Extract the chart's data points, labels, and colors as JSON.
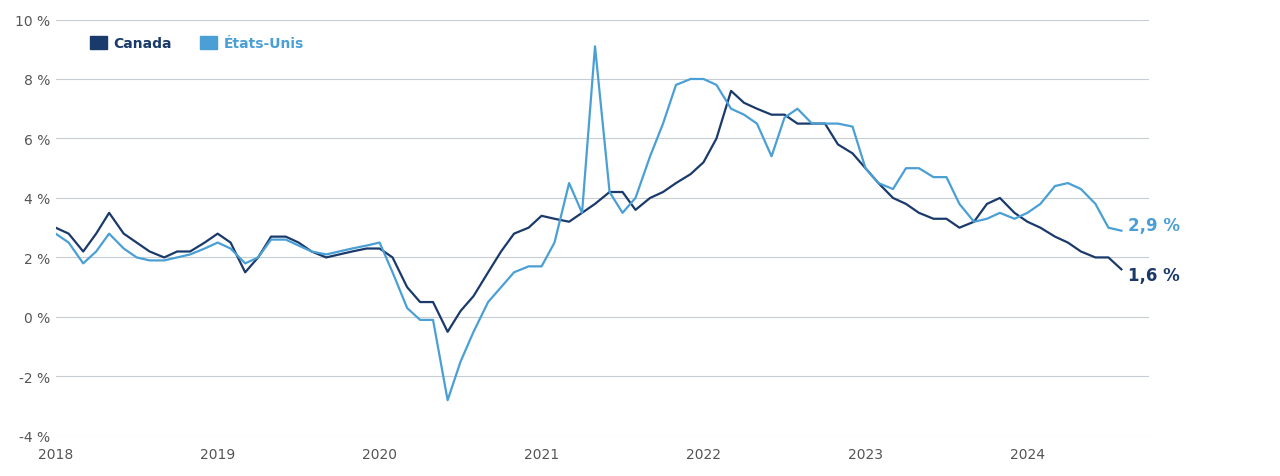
{
  "background_color": "#ffffff",
  "line_color_canada": "#1a3a6b",
  "line_color_us": "#4a9fd4",
  "grid_color": "#c8cdd4",
  "text_color": "#555555",
  "legend_canada": "Canada",
  "legend_us": "États-Unis",
  "end_label_canada": "1,6 %",
  "end_label_us": "2,9 %",
  "ylim": [
    -4,
    10
  ],
  "yticks": [
    -4,
    -2,
    0,
    2,
    4,
    6,
    8,
    10
  ],
  "canada_x": [
    2018.0,
    2018.08,
    2018.17,
    2018.25,
    2018.33,
    2018.42,
    2018.5,
    2018.58,
    2018.67,
    2018.75,
    2018.83,
    2018.92,
    2019.0,
    2019.08,
    2019.17,
    2019.25,
    2019.33,
    2019.42,
    2019.5,
    2019.58,
    2019.67,
    2019.75,
    2019.83,
    2019.92,
    2020.0,
    2020.08,
    2020.17,
    2020.25,
    2020.33,
    2020.42,
    2020.5,
    2020.58,
    2020.67,
    2020.75,
    2020.83,
    2020.92,
    2021.0,
    2021.08,
    2021.17,
    2021.25,
    2021.33,
    2021.42,
    2021.5,
    2021.58,
    2021.67,
    2021.75,
    2021.83,
    2021.92,
    2022.0,
    2022.08,
    2022.17,
    2022.25,
    2022.33,
    2022.42,
    2022.5,
    2022.58,
    2022.67,
    2022.75,
    2022.83,
    2022.92,
    2023.0,
    2023.08,
    2023.17,
    2023.25,
    2023.33,
    2023.42,
    2023.5,
    2023.58,
    2023.67,
    2023.75,
    2023.83,
    2023.92,
    2024.0,
    2024.08,
    2024.17,
    2024.25,
    2024.33,
    2024.42,
    2024.5,
    2024.58
  ],
  "canada_y": [
    3.0,
    2.8,
    2.2,
    2.8,
    3.5,
    2.8,
    2.5,
    2.2,
    2.0,
    2.2,
    2.2,
    2.5,
    2.8,
    2.5,
    1.5,
    2.0,
    2.7,
    2.7,
    2.5,
    2.2,
    2.0,
    2.1,
    2.2,
    2.3,
    2.3,
    2.0,
    1.0,
    0.5,
    0.5,
    -0.5,
    0.2,
    0.7,
    1.5,
    2.2,
    2.8,
    3.0,
    3.4,
    3.3,
    3.2,
    3.5,
    3.8,
    4.2,
    4.2,
    3.6,
    4.0,
    4.2,
    4.5,
    4.8,
    5.2,
    6.0,
    7.6,
    7.2,
    7.0,
    6.8,
    6.8,
    6.5,
    6.5,
    6.5,
    5.8,
    5.5,
    5.0,
    4.5,
    4.0,
    3.8,
    3.5,
    3.3,
    3.3,
    3.0,
    3.2,
    3.8,
    4.0,
    3.5,
    3.2,
    3.0,
    2.7,
    2.5,
    2.2,
    2.0,
    2.0,
    1.6
  ],
  "us_x": [
    2018.0,
    2018.08,
    2018.17,
    2018.25,
    2018.33,
    2018.42,
    2018.5,
    2018.58,
    2018.67,
    2018.75,
    2018.83,
    2018.92,
    2019.0,
    2019.08,
    2019.17,
    2019.25,
    2019.33,
    2019.42,
    2019.5,
    2019.58,
    2019.67,
    2019.75,
    2019.83,
    2019.92,
    2020.0,
    2020.08,
    2020.17,
    2020.25,
    2020.33,
    2020.42,
    2020.5,
    2020.58,
    2020.67,
    2020.75,
    2020.83,
    2020.92,
    2021.0,
    2021.08,
    2021.17,
    2021.25,
    2021.33,
    2021.42,
    2021.5,
    2021.58,
    2021.67,
    2021.75,
    2021.83,
    2021.92,
    2022.0,
    2022.08,
    2022.17,
    2022.25,
    2022.33,
    2022.42,
    2022.5,
    2022.58,
    2022.67,
    2022.75,
    2022.83,
    2022.92,
    2023.0,
    2023.08,
    2023.17,
    2023.25,
    2023.33,
    2023.42,
    2023.5,
    2023.58,
    2023.67,
    2023.75,
    2023.83,
    2023.92,
    2024.0,
    2024.08,
    2024.17,
    2024.25,
    2024.33,
    2024.42,
    2024.5,
    2024.58
  ],
  "us_y": [
    2.8,
    2.5,
    1.8,
    2.2,
    2.8,
    2.3,
    2.0,
    1.9,
    1.9,
    2.0,
    2.1,
    2.3,
    2.5,
    2.3,
    1.8,
    2.0,
    2.6,
    2.6,
    2.4,
    2.2,
    2.1,
    2.2,
    2.3,
    2.4,
    2.5,
    1.5,
    0.3,
    -0.1,
    -0.1,
    -2.8,
    -1.5,
    -0.5,
    0.5,
    1.0,
    1.5,
    1.7,
    1.7,
    2.5,
    4.5,
    3.5,
    9.1,
    4.2,
    3.5,
    4.0,
    5.4,
    6.5,
    7.8,
    8.0,
    8.0,
    7.8,
    7.0,
    6.8,
    6.5,
    5.4,
    6.7,
    7.0,
    6.5,
    6.5,
    6.5,
    6.4,
    5.0,
    4.5,
    4.3,
    5.0,
    5.0,
    4.7,
    4.7,
    3.8,
    3.2,
    3.3,
    3.5,
    3.3,
    3.5,
    3.8,
    4.4,
    4.5,
    4.3,
    3.8,
    3.0,
    2.9
  ]
}
